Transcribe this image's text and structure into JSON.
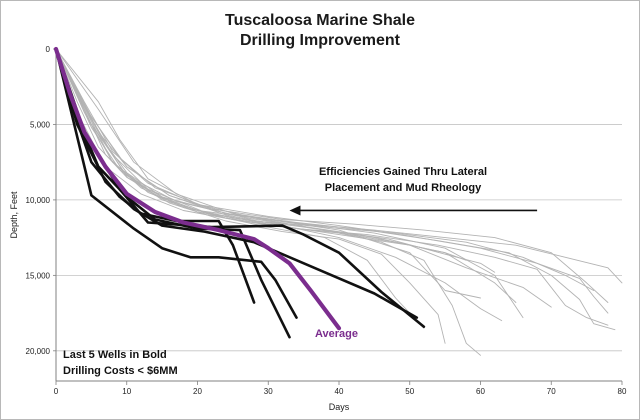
{
  "chart_data": {
    "type": "line",
    "title": "Tuscaloosa Marine Shale",
    "subtitle": "Drilling Improvement",
    "xlabel": "Days",
    "ylabel": "Depth, Feet",
    "xlim": [
      0,
      80
    ],
    "ylim": [
      0,
      22000
    ],
    "y_reversed": true,
    "x_ticks": [
      "0",
      "10",
      "20",
      "30",
      "40",
      "50",
      "60",
      "70",
      "80"
    ],
    "y_ticks": [
      "0",
      "5,000",
      "10,000",
      "15,000",
      "20,000"
    ],
    "grid": "horizontal",
    "colors": {
      "background": "#ffffff",
      "grid": "#c4c4c4",
      "axis": "#808080",
      "thin": "#b3b3b3",
      "bold": "#111111",
      "average": "#7b2d8e"
    },
    "annotation_arrow": {
      "text_line1": "Efficiencies Gained Thru Lateral",
      "text_line2": "Placement and Mud Rheology",
      "from": [
        68,
        10700
      ],
      "to": [
        33,
        10700
      ]
    },
    "note_line1": "Last 5 Wells in Bold",
    "note_line2": "Drilling Costs < $6MM",
    "average_label": "Average",
    "series": [
      {
        "style": "thin",
        "points": [
          [
            0,
            0
          ],
          [
            3,
            3500
          ],
          [
            6,
            6500
          ],
          [
            10,
            8500
          ],
          [
            15,
            9800
          ],
          [
            20,
            10700
          ],
          [
            30,
            11300
          ],
          [
            40,
            12000
          ],
          [
            50,
            13500
          ],
          [
            55,
            16000
          ],
          [
            60,
            16500
          ]
        ]
      },
      {
        "style": "thin",
        "points": [
          [
            0,
            0
          ],
          [
            4,
            4000
          ],
          [
            7,
            7000
          ],
          [
            12,
            9200
          ],
          [
            18,
            10500
          ],
          [
            25,
            11200
          ],
          [
            35,
            11800
          ],
          [
            45,
            12500
          ],
          [
            55,
            13500
          ],
          [
            62,
            15500
          ],
          [
            65,
            16800
          ]
        ]
      },
      {
        "style": "thin",
        "points": [
          [
            0,
            0
          ],
          [
            5,
            4800
          ],
          [
            8,
            7500
          ],
          [
            13,
            9500
          ],
          [
            20,
            10800
          ],
          [
            28,
            11400
          ],
          [
            38,
            11800
          ],
          [
            48,
            12200
          ],
          [
            58,
            12800
          ],
          [
            66,
            13800
          ],
          [
            72,
            15000
          ],
          [
            76,
            16000
          ]
        ]
      },
      {
        "style": "thin",
        "points": [
          [
            0,
            0
          ],
          [
            4,
            3800
          ],
          [
            9,
            7200
          ],
          [
            14,
            9200
          ],
          [
            22,
            10600
          ],
          [
            32,
            11300
          ],
          [
            42,
            11600
          ],
          [
            52,
            12000
          ],
          [
            62,
            12500
          ],
          [
            70,
            13500
          ],
          [
            75,
            15500
          ],
          [
            78,
            16800
          ]
        ]
      },
      {
        "style": "thin",
        "points": [
          [
            0,
            0
          ],
          [
            5,
            5000
          ],
          [
            10,
            8200
          ],
          [
            15,
            9800
          ],
          [
            25,
            11000
          ],
          [
            35,
            11600
          ],
          [
            45,
            12000
          ],
          [
            55,
            12500
          ],
          [
            65,
            13000
          ],
          [
            72,
            13800
          ],
          [
            78,
            14500
          ],
          [
            80,
            15500
          ]
        ]
      },
      {
        "style": "thin",
        "points": [
          [
            0,
            0
          ],
          [
            3,
            4200
          ],
          [
            7,
            7800
          ],
          [
            12,
            9600
          ],
          [
            18,
            10700
          ],
          [
            25,
            11300
          ],
          [
            32,
            11800
          ],
          [
            40,
            12200
          ],
          [
            48,
            12800
          ],
          [
            55,
            13500
          ],
          [
            58,
            14000
          ]
        ]
      },
      {
        "style": "thin",
        "points": [
          [
            0,
            0
          ],
          [
            4,
            3500
          ],
          [
            8,
            6800
          ],
          [
            13,
            8900
          ],
          [
            20,
            10300
          ],
          [
            30,
            11100
          ],
          [
            40,
            11700
          ],
          [
            50,
            12400
          ],
          [
            60,
            13200
          ],
          [
            68,
            14200
          ],
          [
            74,
            15200
          ],
          [
            76,
            16400
          ],
          [
            78,
            17500
          ]
        ]
      },
      {
        "style": "thin",
        "points": [
          [
            0,
            0
          ],
          [
            6,
            5500
          ],
          [
            10,
            7800
          ],
          [
            16,
            9700
          ],
          [
            24,
            10900
          ],
          [
            34,
            11500
          ],
          [
            44,
            12000
          ],
          [
            54,
            12700
          ],
          [
            64,
            13500
          ],
          [
            70,
            15000
          ],
          [
            74,
            16600
          ],
          [
            76,
            18200
          ],
          [
            79,
            18600
          ]
        ]
      },
      {
        "style": "thin",
        "points": [
          [
            0,
            0
          ],
          [
            5,
            5200
          ],
          [
            9,
            8000
          ],
          [
            15,
            10000
          ],
          [
            24,
            11200
          ],
          [
            34,
            11900
          ],
          [
            44,
            12300
          ],
          [
            54,
            13000
          ],
          [
            62,
            13800
          ],
          [
            68,
            14600
          ],
          [
            72,
            17000
          ],
          [
            75,
            17800
          ],
          [
            78,
            18300
          ]
        ]
      },
      {
        "style": "thin",
        "points": [
          [
            0,
            0
          ],
          [
            6,
            3500
          ],
          [
            9,
            6000
          ],
          [
            13,
            8600
          ],
          [
            20,
            10300
          ],
          [
            28,
            11200
          ],
          [
            38,
            12000
          ],
          [
            46,
            12800
          ],
          [
            52,
            14000
          ],
          [
            56,
            17000
          ],
          [
            58,
            19500
          ],
          [
            60,
            20300
          ]
        ]
      },
      {
        "style": "thin",
        "points": [
          [
            0,
            0
          ],
          [
            3,
            3000
          ],
          [
            6,
            5500
          ],
          [
            10,
            8500
          ],
          [
            16,
            10200
          ],
          [
            24,
            11400
          ],
          [
            32,
            12100
          ],
          [
            40,
            12600
          ],
          [
            46,
            13600
          ],
          [
            50,
            15500
          ],
          [
            54,
            17600
          ],
          [
            55,
            19500
          ]
        ]
      },
      {
        "style": "thin",
        "points": [
          [
            0,
            0
          ],
          [
            4,
            4200
          ],
          [
            8,
            7500
          ],
          [
            14,
            9700
          ],
          [
            22,
            11000
          ],
          [
            30,
            11800
          ],
          [
            38,
            12500
          ],
          [
            44,
            14000
          ],
          [
            48,
            16500
          ],
          [
            52,
            18500
          ]
        ]
      },
      {
        "style": "thin",
        "points": [
          [
            0,
            0
          ],
          [
            5,
            4500
          ],
          [
            10,
            7800
          ],
          [
            16,
            9700
          ],
          [
            24,
            11000
          ],
          [
            32,
            11700
          ],
          [
            40,
            12500
          ],
          [
            48,
            13800
          ],
          [
            55,
            15500
          ],
          [
            60,
            17200
          ],
          [
            63,
            18000
          ]
        ]
      },
      {
        "style": "thin",
        "points": [
          [
            0,
            0
          ],
          [
            6,
            4000
          ],
          [
            11,
            7500
          ],
          [
            17,
            9600
          ],
          [
            25,
            10900
          ],
          [
            35,
            11600
          ],
          [
            45,
            12200
          ],
          [
            55,
            13200
          ],
          [
            62,
            15000
          ],
          [
            66,
            17800
          ]
        ]
      },
      {
        "style": "thin",
        "points": [
          [
            0,
            0
          ],
          [
            4,
            3800
          ],
          [
            8,
            7000
          ],
          [
            13,
            9300
          ],
          [
            21,
            10800
          ],
          [
            30,
            11600
          ],
          [
            40,
            12300
          ],
          [
            50,
            13000
          ],
          [
            58,
            14500
          ],
          [
            66,
            15800
          ],
          [
            70,
            17100
          ]
        ]
      },
      {
        "style": "thin",
        "points": [
          [
            0,
            0
          ],
          [
            5,
            5000
          ],
          [
            10,
            8400
          ],
          [
            17,
            10100
          ],
          [
            27,
            11200
          ],
          [
            37,
            11900
          ],
          [
            47,
            12600
          ],
          [
            55,
            13600
          ],
          [
            60,
            14200
          ],
          [
            62,
            14800
          ]
        ]
      },
      {
        "style": "bold",
        "points": [
          [
            0,
            0
          ],
          [
            2,
            3500
          ],
          [
            5,
            7500
          ],
          [
            9,
            9800
          ],
          [
            12,
            10900
          ],
          [
            17,
            11400
          ],
          [
            23,
            11400
          ],
          [
            25,
            13000
          ],
          [
            28,
            16800
          ]
        ]
      },
      {
        "style": "bold",
        "points": [
          [
            0,
            0
          ],
          [
            3,
            4500
          ],
          [
            6,
            7800
          ],
          [
            10,
            9800
          ],
          [
            14,
            11300
          ],
          [
            20,
            11900
          ],
          [
            26,
            12000
          ],
          [
            29,
            15300
          ],
          [
            33,
            19100
          ]
        ]
      },
      {
        "style": "bold",
        "points": [
          [
            0,
            0
          ],
          [
            4,
            5500
          ],
          [
            9,
            9300
          ],
          [
            13,
            11500
          ],
          [
            22,
            11800
          ],
          [
            32,
            11700
          ],
          [
            35,
            12300
          ],
          [
            40,
            13500
          ],
          [
            46,
            16100
          ],
          [
            52,
            18400
          ]
        ]
      },
      {
        "style": "bold",
        "points": [
          [
            0,
            0
          ],
          [
            3,
            5000
          ],
          [
            7,
            8800
          ],
          [
            11,
            10600
          ],
          [
            15,
            11700
          ],
          [
            21,
            12100
          ],
          [
            28,
            12800
          ],
          [
            32,
            13600
          ],
          [
            38,
            14800
          ],
          [
            45,
            16200
          ],
          [
            51,
            17800
          ]
        ]
      },
      {
        "style": "bold",
        "points": [
          [
            0,
            0
          ],
          [
            5,
            9700
          ],
          [
            11,
            11900
          ],
          [
            15,
            13200
          ],
          [
            19,
            13800
          ],
          [
            23,
            13800
          ],
          [
            29,
            14100
          ],
          [
            31,
            15300
          ],
          [
            34,
            17800
          ]
        ]
      },
      {
        "style": "average",
        "name": "Average",
        "points": [
          [
            0,
            0
          ],
          [
            2,
            3000
          ],
          [
            4,
            5500
          ],
          [
            7,
            7800
          ],
          [
            10,
            9600
          ],
          [
            14,
            10800
          ],
          [
            18,
            11500
          ],
          [
            23,
            12000
          ],
          [
            28,
            12600
          ],
          [
            30,
            13200
          ],
          [
            33,
            14200
          ],
          [
            36,
            16000
          ],
          [
            40,
            18500
          ]
        ]
      }
    ]
  }
}
